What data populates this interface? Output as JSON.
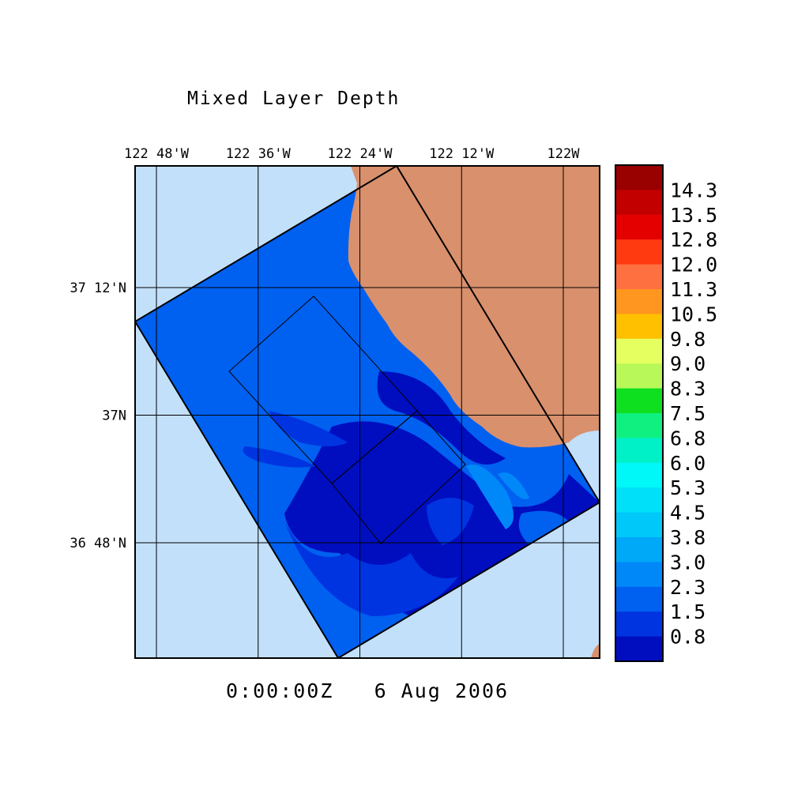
{
  "title": "Mixed Layer Depth",
  "timestamp": "0:00:00Z   6 Aug 2006",
  "lon_ticks": [
    {
      "label": "122 48'W",
      "lon": -122.8
    },
    {
      "label": "122 36'W",
      "lon": -122.6
    },
    {
      "label": "122 24'W",
      "lon": -122.4
    },
    {
      "label": "122 12'W",
      "lon": -122.2
    },
    {
      "label": "122W",
      "lon": -122.0
    }
  ],
  "lat_ticks": [
    {
      "label": "37 12'N",
      "lat": 37.2
    },
    {
      "label": "37N",
      "lat": 37.0
    },
    {
      "label": "36 48'N",
      "lat": 36.8
    }
  ],
  "colors": {
    "land": "#d9906d",
    "ocean_outside": "#c3e0fb",
    "grid": "#000000"
  },
  "colorbar": {
    "labels": [
      "14.3",
      "13.5",
      "12.8",
      "12.0",
      "11.3",
      "10.5",
      "9.8",
      "9.0",
      "8.3",
      "7.5",
      "6.8",
      "6.0",
      "5.3",
      "4.5",
      "3.8",
      "3.0",
      "2.3",
      "1.5",
      "0.8"
    ],
    "colors": [
      "#990000",
      "#c20000",
      "#e50000",
      "#ff3a10",
      "#ff7040",
      "#ff9620",
      "#ffc000",
      "#e6ff60",
      "#b8f858",
      "#0ee020",
      "#10f080",
      "#00f0c8",
      "#00f8f8",
      "#00e0f8",
      "#00c8f8",
      "#00a8f8",
      "#0088f8",
      "#0060f0",
      "#0034e0",
      "#000ec0"
    ]
  }
}
